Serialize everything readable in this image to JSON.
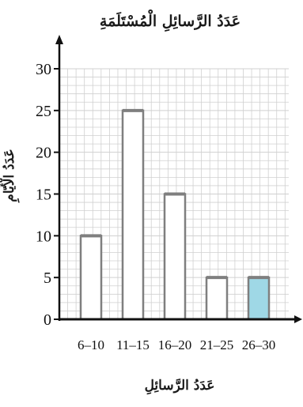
{
  "chart_data": {
    "type": "bar",
    "title": "عَدَدُ الرَّسائِلِ الْمُسْتَلَمَةِ",
    "xlabel": "عَدَدُ الرَّسائِلِ",
    "ylabel": "عَدَدُ الْأَيّامِ",
    "categories": [
      "6–10",
      "11–15",
      "16–20",
      "21–25",
      "26–30"
    ],
    "values": [
      10,
      25,
      15,
      5,
      5
    ],
    "highlighted": [
      false,
      false,
      false,
      false,
      true
    ],
    "ylim": [
      0,
      30
    ],
    "yticks": [
      "0",
      "5",
      "10",
      "15",
      "20",
      "25",
      "30"
    ],
    "grid": true,
    "colors": {
      "bar_outline": "#7f7f7f",
      "bar_fill": "#ffffff",
      "bar_highlight": "#9fd8e6",
      "grid": "#d0d0d0",
      "axis": "#111111"
    }
  }
}
